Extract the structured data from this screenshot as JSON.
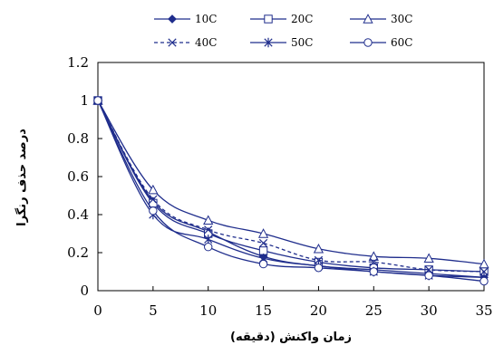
{
  "chart_data": {
    "type": "line",
    "title": "",
    "xlabel": "زمان واکنش (دقیقه)",
    "ylabel": "درصد حذف رنگرا",
    "x": [
      0,
      5,
      10,
      15,
      20,
      25,
      30,
      35
    ],
    "xlim": [
      0,
      35
    ],
    "ylim": [
      0,
      1.2
    ],
    "yticks": [
      "0",
      "0.2",
      "0.4",
      "0.6",
      "0.8",
      "1",
      "1.2"
    ],
    "xticks": [
      "0",
      "5",
      "10",
      "15",
      "20",
      "25",
      "30",
      "35"
    ],
    "grid": false,
    "legend_position": "top",
    "series": [
      {
        "name": "10C",
        "marker": "diamond",
        "dash": "solid",
        "color": "#1f2d8c",
        "values": [
          1.0,
          0.47,
          0.31,
          0.18,
          0.13,
          0.11,
          0.09,
          0.07
        ]
      },
      {
        "name": "20C",
        "marker": "square",
        "dash": "solid",
        "color": "#1f2d8c",
        "values": [
          1.0,
          0.46,
          0.3,
          0.21,
          0.15,
          0.12,
          0.11,
          0.1
        ]
      },
      {
        "name": "30C",
        "marker": "triangle",
        "dash": "solid",
        "color": "#1f2d8c",
        "values": [
          1.0,
          0.53,
          0.37,
          0.3,
          0.22,
          0.18,
          0.17,
          0.14
        ]
      },
      {
        "name": "40C",
        "marker": "x",
        "dash": "dashed",
        "color": "#1f2d8c",
        "values": [
          1.0,
          0.48,
          0.32,
          0.25,
          0.16,
          0.15,
          0.11,
          0.1
        ]
      },
      {
        "name": "50C",
        "marker": "star",
        "dash": "solid",
        "color": "#1f2d8c",
        "values": [
          1.0,
          0.4,
          0.27,
          0.17,
          0.13,
          0.1,
          0.08,
          0.07
        ]
      },
      {
        "name": "60C",
        "marker": "circle",
        "dash": "solid",
        "color": "#1f2d8c",
        "values": [
          1.0,
          0.42,
          0.23,
          0.14,
          0.12,
          0.1,
          0.08,
          0.05
        ]
      }
    ]
  }
}
